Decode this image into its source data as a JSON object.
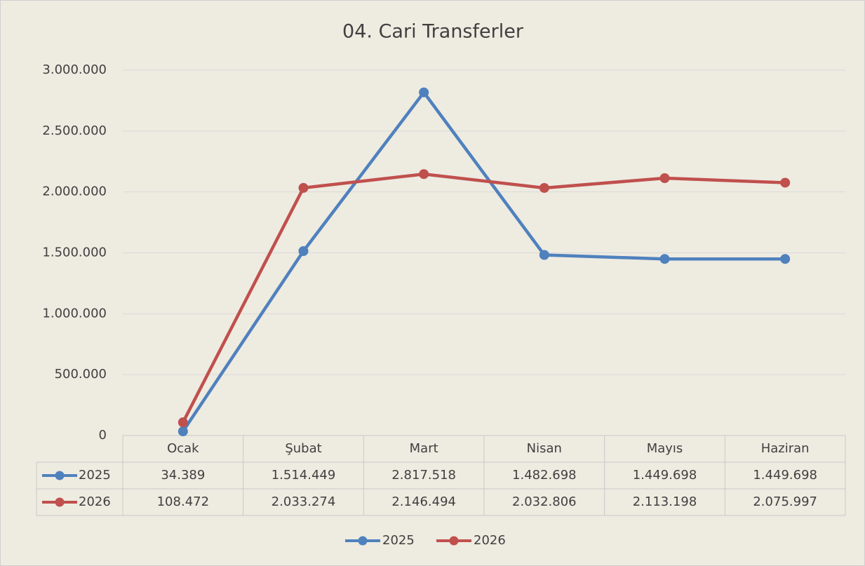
{
  "chart_data": {
    "type": "line",
    "title": "04. Cari Transferler",
    "categories": [
      "Ocak",
      "Şubat",
      "Mart",
      "Nisan",
      "Mayıs",
      "Haziran"
    ],
    "series": [
      {
        "name": "2025",
        "color": "#4f81bd",
        "values": [
          34389,
          1514449,
          2817518,
          1482698,
          1449698,
          1449698
        ],
        "value_labels": [
          "34.389",
          "1.514.449",
          "2.817.518",
          "1.482.698",
          "1.449.698",
          "1.449.698"
        ]
      },
      {
        "name": "2026",
        "color": "#c0504d",
        "values": [
          108472,
          2033274,
          2146494,
          2032806,
          2113198,
          2075997
        ],
        "value_labels": [
          "108.472",
          "2.033.274",
          "2.146.494",
          "2.032.806",
          "2.113.198",
          "2.075.997"
        ]
      }
    ],
    "ylim": [
      0,
      3000000
    ],
    "yticks": [
      0,
      {
        "value": 500000,
        "label": "500.000"
      },
      {
        "value": 1000000,
        "label": "1.000.000"
      },
      {
        "value": 1500000,
        "label": "1.500.000"
      },
      {
        "value": 2000000,
        "label": "2.000.000"
      },
      {
        "value": 2500000,
        "label": "2.500.000"
      },
      {
        "value": 3000000,
        "label": "3.000.000"
      }
    ],
    "grid": true,
    "legend": "bottom"
  }
}
